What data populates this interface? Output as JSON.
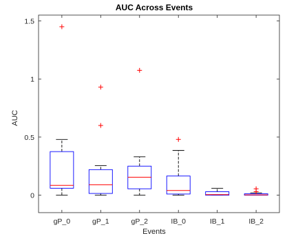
{
  "chart_data": {
    "type": "box",
    "title": "AUC Across Events",
    "xlabel": "Events",
    "ylabel": "AUC",
    "ylim": [
      -0.15,
      1.55
    ],
    "yticks": [
      0,
      0.5,
      1,
      1.5
    ],
    "ytick_labels": [
      "0",
      "0.5",
      "1",
      "1.5"
    ],
    "categories": [
      "gP_0",
      "gP_1",
      "gP_2",
      "IB_0",
      "IB_1",
      "IB_2"
    ],
    "boxes": [
      {
        "category": "gP_0",
        "q1": 0.06,
        "median": 0.085,
        "q3": 0.375,
        "whisker_low": 0.0,
        "whisker_high": 0.48,
        "outliers": [
          1.45
        ]
      },
      {
        "category": "gP_1",
        "q1": 0.015,
        "median": 0.09,
        "q3": 0.22,
        "whisker_low": 0.0,
        "whisker_high": 0.255,
        "outliers": [
          0.93,
          0.6
        ]
      },
      {
        "category": "gP_2",
        "q1": 0.055,
        "median": 0.155,
        "q3": 0.25,
        "whisker_low": 0.0,
        "whisker_high": 0.33,
        "outliers": [
          1.075
        ]
      },
      {
        "category": "IB_0",
        "q1": 0.01,
        "median": 0.04,
        "q3": 0.165,
        "whisker_low": 0.0,
        "whisker_high": 0.385,
        "outliers": [
          0.48
        ]
      },
      {
        "category": "IB_1",
        "q1": 0.0,
        "median": 0.005,
        "q3": 0.03,
        "whisker_low": 0.0,
        "whisker_high": 0.06,
        "outliers": []
      },
      {
        "category": "IB_2",
        "q1": 0.0,
        "median": 0.003,
        "q3": 0.012,
        "whisker_low": 0.0,
        "whisker_high": 0.02,
        "outliers": [
          0.055,
          0.03
        ]
      }
    ],
    "colors": {
      "box": "#0000ff",
      "median": "#ff0000",
      "outlier": "#ff0000",
      "whisker": "#000000",
      "axis": "#262626"
    },
    "grid": false
  }
}
